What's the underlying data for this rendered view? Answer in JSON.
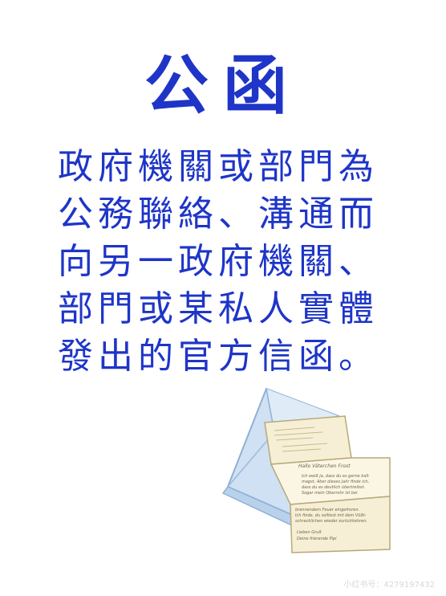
{
  "title": "公函",
  "definition_lines": [
    "政府機關或部門為",
    "公務聯絡、溝通而",
    "向另一政府機關、",
    "部門或某私人實體",
    "發出的官方信函。"
  ],
  "letter": {
    "greeting": "Hallo Väterchen Frost",
    "lines": [
      "Ich weiß ja, dass du es gerne kalt",
      "magst. Aber dieses Jahr finde ich,",
      "dass du es deutlich übertreibst.",
      "Sogar mein Oberrohr ist bei"
    ],
    "lower_lines": [
      "brennendem Feuer eingefroren.",
      "Ich finde, du solltest mit dem Vüßt-",
      "schrecklichen wieder zurückkehren."
    ],
    "closing": "Lieben Gruß",
    "signature": "Deine frierende Pipi"
  },
  "watermark": "小红书号：4279197432",
  "colors": {
    "text_blue": "#1e35c8",
    "envelope_blue": "#cfe1f3",
    "paper": "#fbf6e4"
  }
}
